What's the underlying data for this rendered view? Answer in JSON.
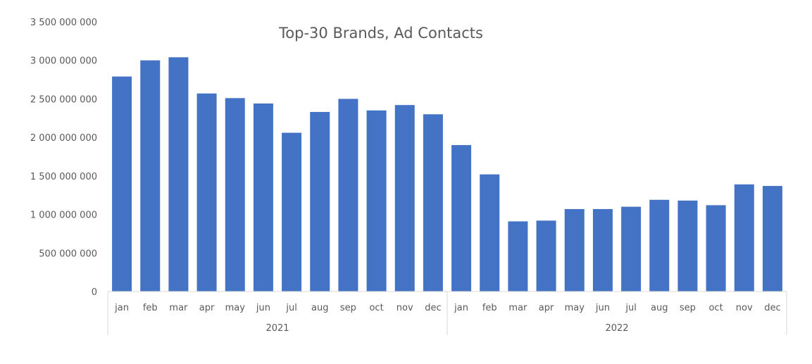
{
  "chart_data": {
    "type": "bar",
    "title": "Top-30 Brands, Ad Contacts",
    "xlabel": "",
    "ylabel": "",
    "ylim": [
      0,
      3500000000
    ],
    "y_ticks": [
      {
        "value": 0,
        "label": "0"
      },
      {
        "value": 500000000,
        "label": "500 000 000"
      },
      {
        "value": 1000000000,
        "label": "1 000 000 000"
      },
      {
        "value": 1500000000,
        "label": "1 500 000 000"
      },
      {
        "value": 2000000000,
        "label": "2 000 000 000"
      },
      {
        "value": 2500000000,
        "label": "2 500 000 000"
      },
      {
        "value": 3000000000,
        "label": "3 000 000 000"
      },
      {
        "value": 3500000000,
        "label": "3 500 000 000"
      }
    ],
    "grid": false,
    "legend": "none",
    "bar_color": "#4472C4",
    "groups": [
      {
        "label": "2021",
        "categories": [
          "jan",
          "feb",
          "mar",
          "apr",
          "may",
          "jun",
          "jul",
          "aug",
          "sep",
          "oct",
          "nov",
          "dec"
        ],
        "values": [
          2790000000,
          3000000000,
          3040000000,
          2570000000,
          2510000000,
          2440000000,
          2060000000,
          2330000000,
          2500000000,
          2350000000,
          2420000000,
          2300000000
        ]
      },
      {
        "label": "2022",
        "categories": [
          "jan",
          "feb",
          "mar",
          "apr",
          "may",
          "jun",
          "jul",
          "aug",
          "sep",
          "oct",
          "nov",
          "dec"
        ],
        "values": [
          1900000000,
          1520000000,
          910000000,
          920000000,
          1070000000,
          1070000000,
          1100000000,
          1190000000,
          1180000000,
          1120000000,
          1390000000,
          1370000000
        ]
      }
    ]
  }
}
